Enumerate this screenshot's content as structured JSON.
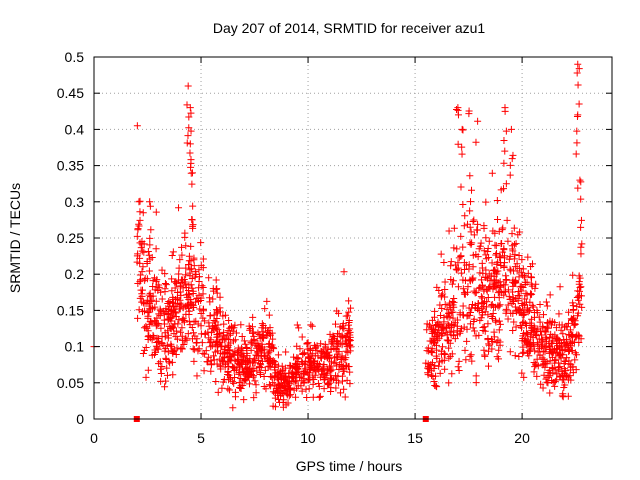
{
  "chart_data": {
    "type": "scatter",
    "title": "Day 207 of 2014, SRMTID for receiver azu1",
    "xlabel": "GPS time / hours",
    "ylabel": "SRMTID / TECUs",
    "xlim": [
      0,
      24.2
    ],
    "ylim": [
      0,
      0.5
    ],
    "xticks": [
      0,
      5,
      10,
      15,
      20
    ],
    "xtick_labels": [
      "0",
      "5",
      "10",
      "15",
      "20"
    ],
    "yticks": [
      0,
      0.05,
      0.1,
      0.15,
      0.2,
      0.25,
      0.3,
      0.35,
      0.4,
      0.45,
      0.5
    ],
    "ytick_labels": [
      "0",
      "0.05",
      "0.1",
      "0.15",
      "0.2",
      "0.25",
      "0.3",
      "0.35",
      "0.4",
      "0.45",
      "0.5"
    ],
    "grid": true,
    "marker": "+",
    "color": "#ff0000",
    "seed": 207,
    "data_gaps": [
      [
        0.05,
        2.0
      ],
      [
        12.0,
        15.5
      ],
      [
        22.8,
        24.2
      ]
    ],
    "marker_squares": [
      {
        "x": 2.0,
        "y": 0.0
      },
      {
        "x": 15.5,
        "y": 0.0
      }
    ],
    "series": [
      {
        "name": "SRMTID",
        "envelope": [
          {
            "x": 0.0,
            "y": 0.1
          },
          {
            "x": 2.0,
            "y": 0.2
          },
          {
            "x": 2.5,
            "y": 0.16
          },
          {
            "x": 3.5,
            "y": 0.12
          },
          {
            "x": 4.3,
            "y": 0.17
          },
          {
            "x": 5.0,
            "y": 0.15
          },
          {
            "x": 6.0,
            "y": 0.1
          },
          {
            "x": 7.0,
            "y": 0.07
          },
          {
            "x": 8.0,
            "y": 0.1
          },
          {
            "x": 8.5,
            "y": 0.05
          },
          {
            "x": 9.0,
            "y": 0.05
          },
          {
            "x": 10.0,
            "y": 0.07
          },
          {
            "x": 11.0,
            "y": 0.08
          },
          {
            "x": 12.0,
            "y": 0.1
          },
          {
            "x": 15.5,
            "y": 0.08
          },
          {
            "x": 16.5,
            "y": 0.12
          },
          {
            "x": 17.5,
            "y": 0.2
          },
          {
            "x": 18.5,
            "y": 0.16
          },
          {
            "x": 19.2,
            "y": 0.2
          },
          {
            "x": 20.0,
            "y": 0.15
          },
          {
            "x": 21.0,
            "y": 0.1
          },
          {
            "x": 22.0,
            "y": 0.08
          },
          {
            "x": 22.5,
            "y": 0.12
          },
          {
            "x": 22.8,
            "y": 0.2
          }
        ],
        "spikes": [
          {
            "x": 2.1,
            "y": 0.3
          },
          {
            "x": 2.6,
            "y": 0.3
          },
          {
            "x": 4.4,
            "y": 0.46
          },
          {
            "x": 4.5,
            "y": 0.43
          },
          {
            "x": 4.5,
            "y": 0.38
          },
          {
            "x": 4.6,
            "y": 0.34
          },
          {
            "x": 17.0,
            "y": 0.43
          },
          {
            "x": 17.2,
            "y": 0.4
          },
          {
            "x": 19.2,
            "y": 0.43
          },
          {
            "x": 19.5,
            "y": 0.4
          },
          {
            "x": 22.6,
            "y": 0.49
          },
          {
            "x": 22.6,
            "y": 0.42
          },
          {
            "x": 22.7,
            "y": 0.33
          }
        ]
      }
    ]
  }
}
